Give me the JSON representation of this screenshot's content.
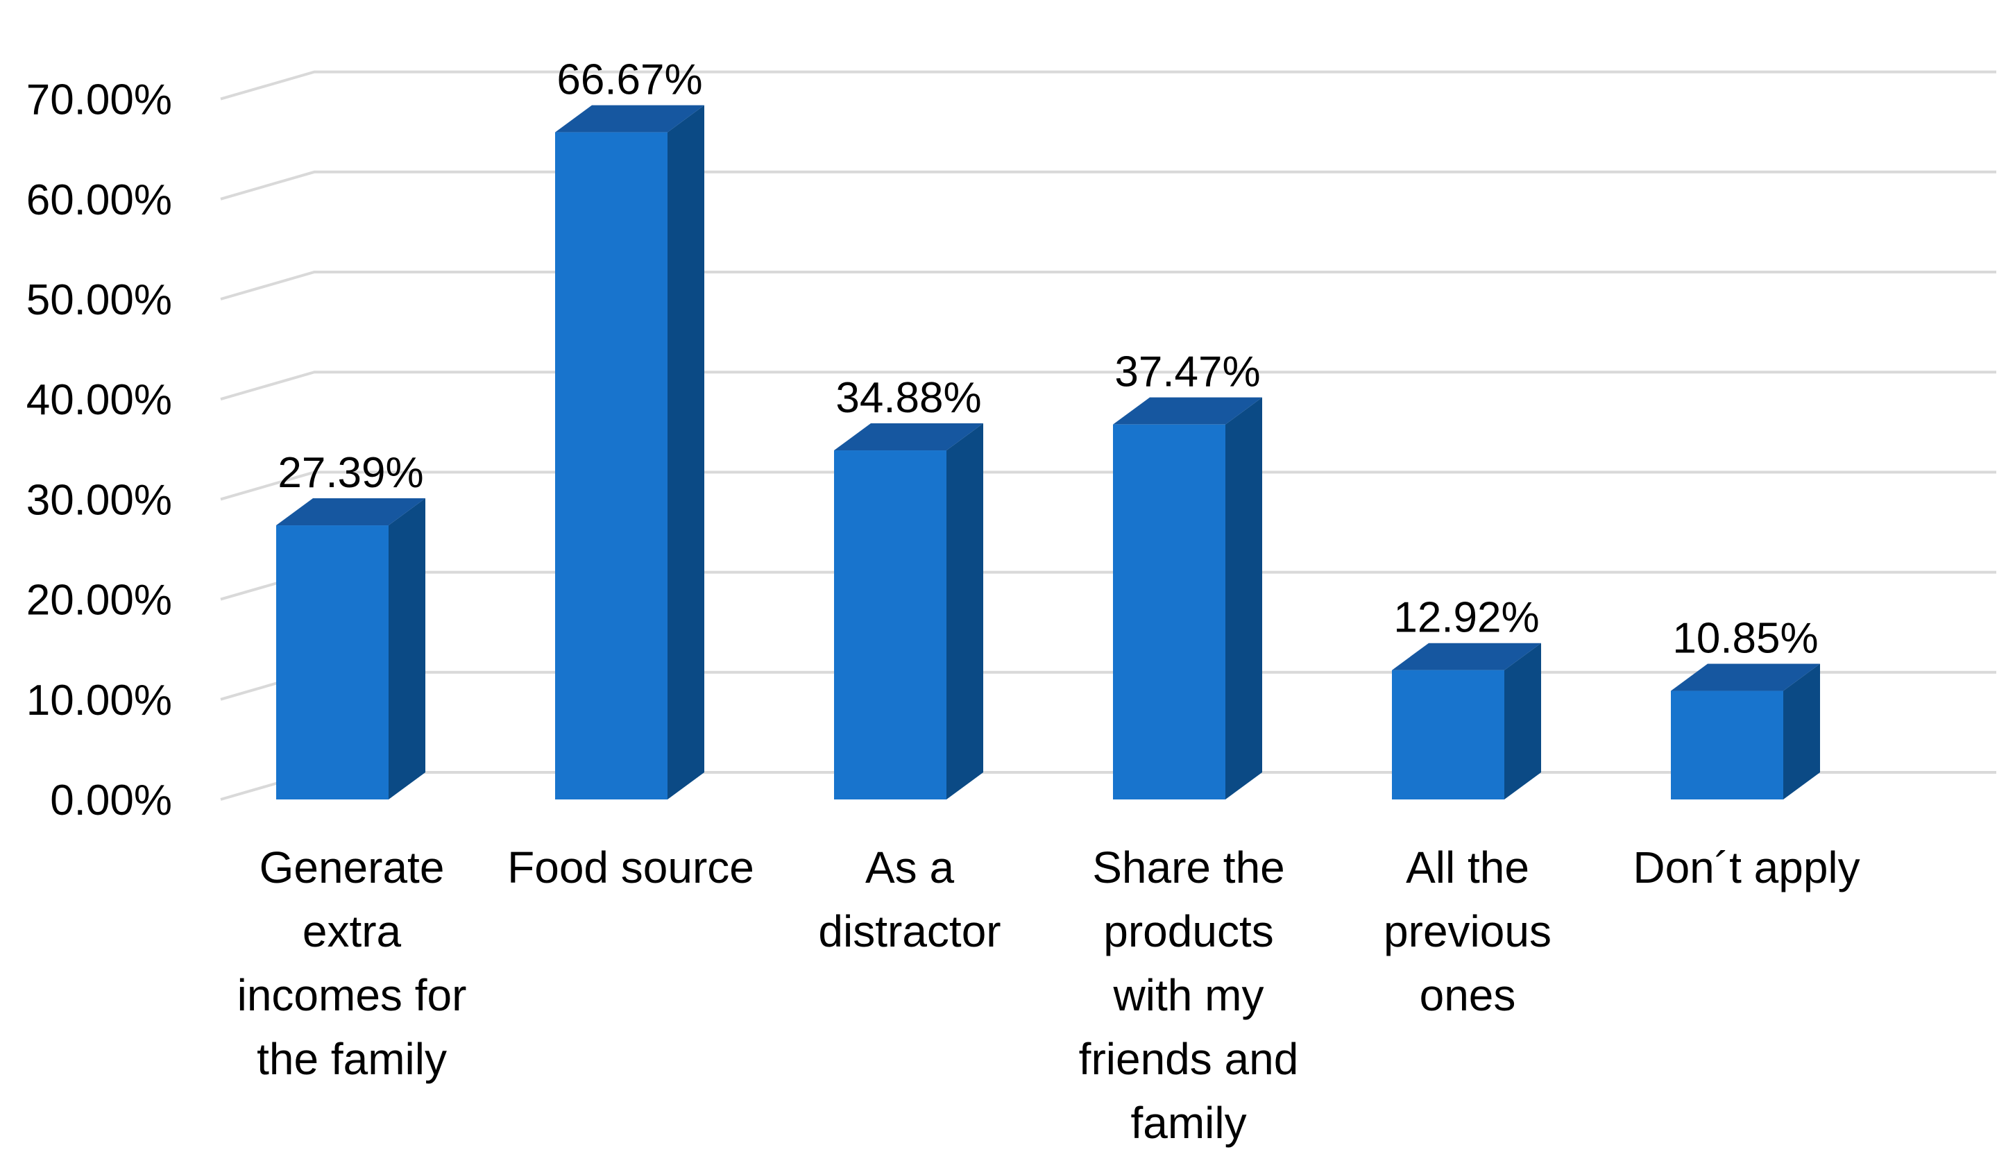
{
  "chart_data": {
    "type": "bar",
    "style": "3d-column",
    "categories": [
      [
        "Generate",
        "extra",
        "incomes for",
        "the family"
      ],
      [
        "Food source"
      ],
      [
        "As a",
        "distractor"
      ],
      [
        "Share the",
        "products",
        "with my",
        "friends and",
        "family"
      ],
      [
        "All the",
        "previous",
        "ones"
      ],
      [
        "Don´t apply"
      ]
    ],
    "values": [
      27.39,
      66.67,
      34.88,
      37.47,
      12.92,
      10.85
    ],
    "data_labels": [
      "27.39%",
      "66.67%",
      "34.88%",
      "37.47%",
      "12.92%",
      "10.85%"
    ],
    "ylim": [
      0,
      70
    ],
    "yticks": [
      0,
      10,
      20,
      30,
      40,
      50,
      60,
      70
    ],
    "ytick_labels": [
      "0.00%",
      "10.00%",
      "20.00%",
      "30.00%",
      "40.00%",
      "50.00%",
      "60.00%",
      "70.00%"
    ],
    "title": "",
    "xlabel": "",
    "ylabel": "",
    "grid": true,
    "legend": "none",
    "colors": {
      "bar_front": "#1874CD",
      "bar_side": "#0B4A85",
      "bar_top": "#1657A0",
      "grid": "#D9D9D9"
    }
  }
}
